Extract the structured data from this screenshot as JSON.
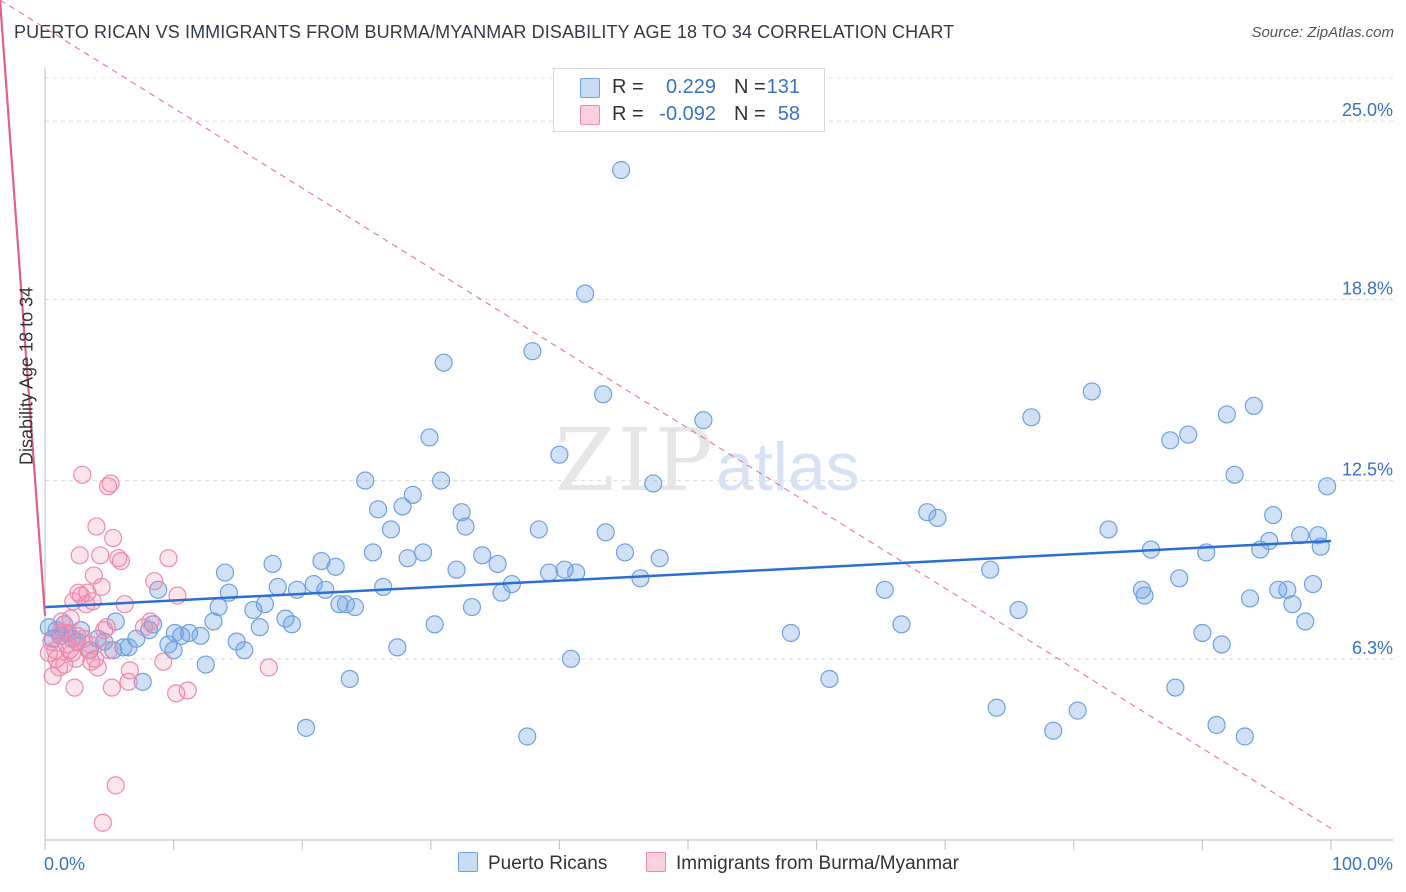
{
  "header": {
    "title": "PUERTO RICAN VS IMMIGRANTS FROM BURMA/MYANMAR DISABILITY AGE 18 TO 34 CORRELATION CHART",
    "source": "Source: ZipAtlas.com"
  },
  "watermark": {
    "zip": "ZIP",
    "atlas": "atlas"
  },
  "legend": {
    "rows": [
      {
        "r_label": "R =",
        "r_value": "0.229",
        "n_label": "N =",
        "n_value": "131",
        "color": "#6fa1e0"
      },
      {
        "r_label": "R =",
        "r_value": "-0.092",
        "n_label": "N =",
        "n_value": "58",
        "color": "#ef8aab"
      }
    ],
    "bottom": [
      {
        "label": "Puerto Ricans",
        "color": "#6fa1e0"
      },
      {
        "label": "Immigrants from Burma/Myanmar",
        "color": "#ef8aab"
      }
    ]
  },
  "chart_data": {
    "type": "scatter",
    "title": "PUERTO RICAN VS IMMIGRANTS FROM BURMA/MYANMAR DISABILITY AGE 18 TO 34 CORRELATION CHART",
    "ylabel": "Disability Age 18 to 34",
    "xlabel": "",
    "xlim": [
      0,
      100
    ],
    "ylim": [
      0,
      26.5
    ],
    "x_tick_labels": [
      {
        "value": 0,
        "label": "0.0%"
      },
      {
        "value": 100,
        "label": "100.0%"
      }
    ],
    "y_tick_labels": [
      {
        "value": 6.3,
        "label": "6.3%"
      },
      {
        "value": 12.5,
        "label": "12.5%"
      },
      {
        "value": 18.8,
        "label": "18.8%"
      },
      {
        "value": 25.0,
        "label": "25.0%"
      }
    ],
    "grid": "horizontal dashed",
    "series": [
      {
        "name": "Puerto Ricans",
        "color": "#6fa1e0",
        "line_color": "#2d6fcf",
        "trend": {
          "x": [
            0,
            100
          ],
          "y": [
            8.1,
            10.4
          ]
        },
        "points": [
          [
            0.3,
            7.4
          ],
          [
            0.6,
            7.0
          ],
          [
            0.9,
            7.3
          ],
          [
            1.2,
            7.1
          ],
          [
            1.5,
            7.5
          ],
          [
            1.8,
            7.2
          ],
          [
            2.1,
            7.0
          ],
          [
            2.5,
            6.9
          ],
          [
            2.8,
            7.3
          ],
          [
            3.5,
            6.6
          ],
          [
            4.1,
            7.0
          ],
          [
            4.6,
            6.9
          ],
          [
            5.3,
            6.6
          ],
          [
            5.5,
            7.6
          ],
          [
            6.1,
            6.7
          ],
          [
            6.5,
            6.7
          ],
          [
            7.1,
            7.0
          ],
          [
            7.6,
            5.5
          ],
          [
            8.1,
            7.3
          ],
          [
            8.4,
            7.5
          ],
          [
            8.8,
            8.7
          ],
          [
            9.6,
            6.8
          ],
          [
            10.0,
            6.6
          ],
          [
            10.1,
            7.2
          ],
          [
            10.6,
            7.1
          ],
          [
            11.2,
            7.2
          ],
          [
            12.1,
            7.1
          ],
          [
            12.5,
            6.1
          ],
          [
            13.1,
            7.6
          ],
          [
            13.5,
            8.1
          ],
          [
            14.0,
            9.3
          ],
          [
            14.3,
            8.6
          ],
          [
            14.9,
            6.9
          ],
          [
            15.5,
            6.6
          ],
          [
            16.2,
            8.0
          ],
          [
            16.7,
            7.4
          ],
          [
            17.1,
            8.2
          ],
          [
            17.7,
            9.6
          ],
          [
            18.1,
            8.8
          ],
          [
            18.7,
            7.7
          ],
          [
            19.2,
            7.5
          ],
          [
            19.6,
            8.7
          ],
          [
            20.3,
            3.9
          ],
          [
            20.9,
            8.9
          ],
          [
            21.5,
            9.7
          ],
          [
            21.8,
            8.7
          ],
          [
            22.6,
            9.5
          ],
          [
            22.9,
            8.2
          ],
          [
            23.4,
            8.2
          ],
          [
            23.7,
            5.6
          ],
          [
            24.1,
            8.1
          ],
          [
            24.9,
            12.5
          ],
          [
            25.5,
            10.0
          ],
          [
            25.9,
            11.5
          ],
          [
            26.3,
            8.8
          ],
          [
            26.9,
            10.8
          ],
          [
            27.4,
            6.7
          ],
          [
            27.8,
            11.6
          ],
          [
            28.2,
            9.8
          ],
          [
            28.6,
            12.0
          ],
          [
            29.4,
            10.0
          ],
          [
            29.9,
            14.0
          ],
          [
            30.3,
            7.5
          ],
          [
            30.8,
            12.5
          ],
          [
            31.0,
            16.6
          ],
          [
            32.0,
            9.4
          ],
          [
            32.4,
            11.4
          ],
          [
            32.7,
            10.9
          ],
          [
            33.2,
            8.1
          ],
          [
            34.0,
            9.9
          ],
          [
            35.2,
            9.6
          ],
          [
            35.5,
            8.6
          ],
          [
            36.3,
            8.9
          ],
          [
            37.5,
            3.6
          ],
          [
            37.9,
            17.0
          ],
          [
            38.4,
            10.8
          ],
          [
            39.2,
            9.3
          ],
          [
            40.0,
            13.4
          ],
          [
            40.4,
            9.4
          ],
          [
            40.9,
            6.3
          ],
          [
            41.3,
            9.3
          ],
          [
            42.0,
            19.0
          ],
          [
            43.4,
            15.5
          ],
          [
            43.6,
            10.7
          ],
          [
            44.8,
            23.3
          ],
          [
            45.1,
            10.0
          ],
          [
            46.3,
            9.1
          ],
          [
            47.3,
            12.4
          ],
          [
            47.8,
            9.8
          ],
          [
            51.2,
            14.6
          ],
          [
            58.0,
            7.2
          ],
          [
            61.0,
            5.6
          ],
          [
            65.3,
            8.7
          ],
          [
            66.6,
            7.5
          ],
          [
            68.6,
            11.4
          ],
          [
            69.4,
            11.2
          ],
          [
            73.5,
            9.4
          ],
          [
            74.0,
            4.6
          ],
          [
            75.7,
            8.0
          ],
          [
            76.7,
            14.7
          ],
          [
            78.4,
            3.8
          ],
          [
            80.3,
            4.5
          ],
          [
            81.4,
            15.6
          ],
          [
            82.7,
            10.8
          ],
          [
            85.3,
            8.7
          ],
          [
            85.5,
            8.5
          ],
          [
            86.0,
            10.1
          ],
          [
            87.5,
            13.9
          ],
          [
            87.9,
            5.3
          ],
          [
            88.2,
            9.1
          ],
          [
            88.9,
            14.1
          ],
          [
            90.0,
            7.2
          ],
          [
            90.3,
            10.0
          ],
          [
            91.1,
            4.0
          ],
          [
            91.5,
            6.8
          ],
          [
            91.9,
            14.8
          ],
          [
            92.5,
            12.7
          ],
          [
            93.3,
            3.6
          ],
          [
            93.7,
            8.4
          ],
          [
            94.0,
            15.1
          ],
          [
            94.5,
            10.1
          ],
          [
            95.2,
            10.4
          ],
          [
            95.5,
            11.3
          ],
          [
            95.9,
            8.7
          ],
          [
            96.6,
            8.7
          ],
          [
            97.0,
            8.2
          ],
          [
            97.6,
            10.6
          ],
          [
            98.0,
            7.6
          ],
          [
            98.6,
            8.9
          ],
          [
            99.0,
            10.6
          ],
          [
            99.2,
            10.2
          ],
          [
            99.7,
            12.3
          ]
        ]
      },
      {
        "name": "Immigrants from Burma/Myanmar",
        "color": "#ef8aab",
        "line_color": "#e0608f",
        "trend": {
          "x": [
            0,
            100
          ],
          "y": [
            7.8,
            0.4
          ]
        },
        "trend_solid_to": 20,
        "points": [
          [
            0.3,
            6.5
          ],
          [
            0.5,
            6.9
          ],
          [
            0.6,
            5.7
          ],
          [
            0.8,
            6.6
          ],
          [
            0.9,
            6.3
          ],
          [
            1.1,
            6.0
          ],
          [
            1.2,
            7.2
          ],
          [
            1.3,
            7.6
          ],
          [
            1.5,
            6.1
          ],
          [
            1.7,
            6.8
          ],
          [
            1.8,
            7.2
          ],
          [
            1.9,
            6.6
          ],
          [
            2.0,
            7.7
          ],
          [
            2.1,
            6.5
          ],
          [
            2.2,
            8.3
          ],
          [
            2.3,
            5.3
          ],
          [
            2.4,
            6.3
          ],
          [
            2.5,
            7.1
          ],
          [
            2.6,
            8.6
          ],
          [
            2.7,
            9.9
          ],
          [
            2.8,
            8.5
          ],
          [
            2.9,
            12.7
          ],
          [
            3.0,
            7.0
          ],
          [
            3.2,
            8.2
          ],
          [
            3.3,
            8.6
          ],
          [
            3.4,
            6.6
          ],
          [
            3.5,
            6.8
          ],
          [
            3.6,
            6.2
          ],
          [
            3.7,
            8.3
          ],
          [
            3.8,
            9.2
          ],
          [
            3.9,
            6.3
          ],
          [
            4.0,
            10.9
          ],
          [
            4.1,
            6.0
          ],
          [
            4.3,
            9.9
          ],
          [
            4.4,
            8.8
          ],
          [
            4.5,
            0.6
          ],
          [
            4.6,
            7.3
          ],
          [
            4.8,
            7.4
          ],
          [
            4.9,
            12.3
          ],
          [
            5.0,
            6.6
          ],
          [
            5.1,
            12.4
          ],
          [
            5.2,
            5.3
          ],
          [
            5.3,
            10.5
          ],
          [
            5.5,
            1.9
          ],
          [
            5.7,
            9.8
          ],
          [
            5.9,
            9.7
          ],
          [
            6.2,
            8.2
          ],
          [
            6.5,
            5.5
          ],
          [
            6.6,
            5.9
          ],
          [
            7.7,
            7.4
          ],
          [
            8.2,
            7.6
          ],
          [
            8.5,
            9.0
          ],
          [
            9.2,
            6.2
          ],
          [
            9.6,
            9.8
          ],
          [
            10.2,
            5.1
          ],
          [
            10.3,
            8.5
          ],
          [
            11.1,
            5.2
          ],
          [
            17.4,
            6.0
          ]
        ]
      }
    ]
  }
}
